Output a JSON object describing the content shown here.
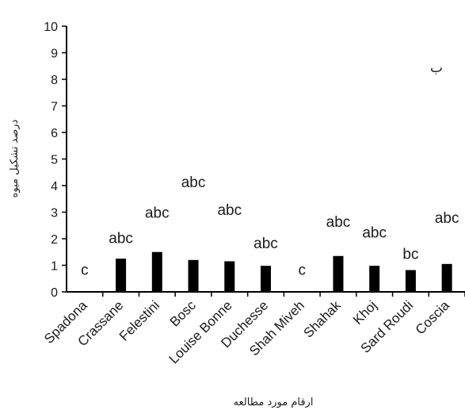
{
  "chart_data": {
    "type": "bar",
    "categories": [
      "Spadona",
      "Crassane",
      "Felestini",
      "Bosc",
      "Louise Bonne",
      "Duchesse",
      "Shah Miveh",
      "Shahak",
      "Khoj",
      "Sard Roudi",
      "Coscia"
    ],
    "values": [
      0,
      1.25,
      1.5,
      1.2,
      1.15,
      0.98,
      0,
      1.35,
      0.98,
      0.82,
      1.05
    ],
    "significance_labels": [
      "c",
      "abc",
      "abc",
      "abc",
      "abc",
      "abc",
      "c",
      "abc",
      "abc",
      "bc",
      "abc"
    ],
    "label_values": [
      0.85,
      2.05,
      3.0,
      4.15,
      3.1,
      1.85,
      0.85,
      2.65,
      2.25,
      1.45,
      2.8
    ],
    "ylim": [
      0,
      10
    ],
    "yticks": [
      0,
      1,
      2,
      3,
      4,
      5,
      6,
      7,
      8,
      9,
      10
    ],
    "ylabel": "درصد تشکیل میوه",
    "xlabel": "ارقام مورد مطالعه",
    "panel_label": "ب",
    "panel_label_value": 8.45,
    "bar_color": "#000000",
    "grid": false,
    "legend": "none"
  }
}
